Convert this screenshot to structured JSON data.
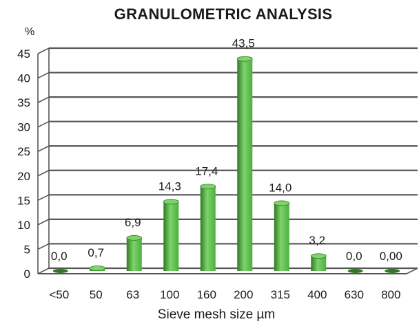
{
  "chart_data": {
    "type": "bar",
    "title": "GRANULOMETRIC ANALYSIS",
    "ylabel": "%",
    "xlabel": "Sieve mesh size µm",
    "categories": [
      "<50",
      "50",
      "63",
      "100",
      "160",
      "200",
      "315",
      "400",
      "630",
      "800"
    ],
    "values": [
      0.0,
      0.7,
      6.9,
      14.3,
      17.4,
      43.5,
      14.0,
      3.2,
      0.0,
      0.0
    ],
    "data_labels": [
      "0,0",
      "0,7",
      "6,9",
      "14,3",
      "17,4",
      "43,5",
      "14,0",
      "3,2",
      "0,0",
      "0,00"
    ],
    "ylim": [
      0,
      45
    ],
    "yticks": [
      0,
      5,
      10,
      15,
      20,
      25,
      30,
      35,
      40,
      45
    ],
    "grid": true,
    "bar_color": "#4caf3e",
    "bar_dark": "#2f7a23",
    "bar_light": "#7ed36a"
  }
}
